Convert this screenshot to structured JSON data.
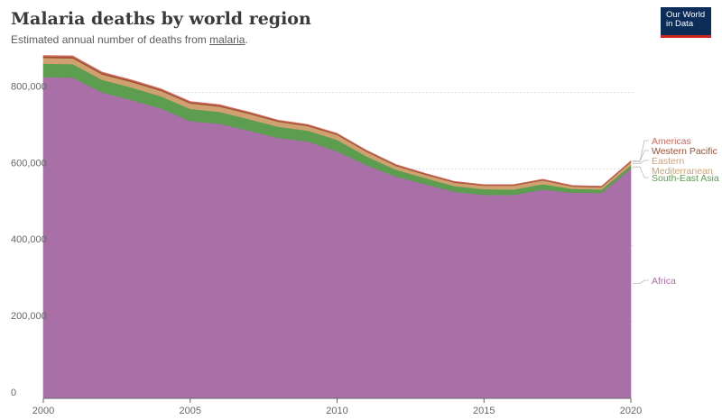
{
  "header": {
    "title": "Malaria deaths by world region",
    "subtitle_prefix": "Estimated annual number of deaths from ",
    "subtitle_link": "malaria",
    "subtitle_suffix": "."
  },
  "logo": {
    "line1": "Our World",
    "line2": "in Data",
    "bg_color": "#0b2d57",
    "bar_color": "#ce261e"
  },
  "chart_data": {
    "type": "area",
    "stacked": true,
    "title": "Malaria deaths by world region",
    "subtitle": "Estimated annual number of deaths from malaria.",
    "xlabel": "",
    "ylabel": "",
    "x": [
      2000,
      2001,
      2002,
      2003,
      2004,
      2005,
      2006,
      2007,
      2008,
      2009,
      2010,
      2011,
      2012,
      2013,
      2014,
      2015,
      2016,
      2017,
      2018,
      2019,
      2020
    ],
    "xticks": [
      2000,
      2005,
      2010,
      2015,
      2020
    ],
    "yticks": [
      0,
      200000,
      400000,
      600000,
      800000
    ],
    "ytick_labels": [
      "0",
      "200,000",
      "400,000",
      "600,000",
      "800,000"
    ],
    "ylim": [
      0,
      900000
    ],
    "grid": "horizontal dotted",
    "legend": "labels at right end of areas",
    "series": [
      {
        "name": "Africa",
        "color": "#a970a8",
        "values": [
          840000,
          839000,
          800000,
          780000,
          758000,
          725000,
          718000,
          700000,
          681000,
          672000,
          646000,
          610000,
          580000,
          560000,
          540000,
          532000,
          532000,
          546000,
          538000,
          537000,
          601000
        ]
      },
      {
        "name": "South-East Asia",
        "color": "#5c9d4f",
        "values": [
          35000,
          35000,
          33000,
          33000,
          32000,
          32000,
          31000,
          30000,
          29000,
          28000,
          30000,
          23000,
          18000,
          16000,
          15000,
          15000,
          14000,
          14000,
          10000,
          9000,
          8000
        ]
      },
      {
        "name": "Eastern Mediterranean",
        "color": "#d1a071",
        "values": [
          15000,
          15000,
          14000,
          14000,
          14000,
          14000,
          14000,
          14000,
          13000,
          12000,
          13000,
          12000,
          10000,
          9000,
          9000,
          9000,
          10000,
          10000,
          6000,
          6000,
          9000
        ]
      },
      {
        "name": "Western Pacific",
        "color": "#9c4f2f",
        "values": [
          4000,
          4000,
          3700,
          3500,
          3400,
          3200,
          3000,
          2900,
          2700,
          2500,
          2400,
          2300,
          2200,
          2100,
          2000,
          1900,
          1800,
          1800,
          1700,
          1700,
          1700
        ]
      },
      {
        "name": "Americas",
        "color": "#cf6a5e",
        "values": [
          2500,
          2400,
          2300,
          2200,
          2100,
          2000,
          1900,
          1800,
          1700,
          1600,
          1500,
          1400,
          1300,
          1300,
          1200,
          1100,
          1100,
          1100,
          1000,
          1000,
          1000
        ]
      }
    ],
    "label_order_top_to_bottom": [
      "Americas",
      "Western Pacific",
      "Eastern Mediterranean",
      "South-East Asia",
      "Africa"
    ],
    "colors": {
      "grid": "#dddddd",
      "axis": "#666666",
      "tick_text": "#666666"
    }
  }
}
